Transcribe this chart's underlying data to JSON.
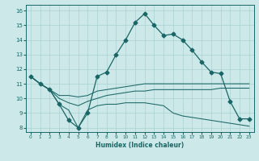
{
  "xlabel": "Humidex (Indice chaleur)",
  "xlim": [
    -0.5,
    23.5
  ],
  "ylim": [
    7.7,
    16.4
  ],
  "xticks": [
    0,
    1,
    2,
    3,
    4,
    5,
    6,
    7,
    8,
    9,
    10,
    11,
    12,
    13,
    14,
    15,
    16,
    17,
    18,
    19,
    20,
    21,
    22,
    23
  ],
  "yticks": [
    8,
    9,
    10,
    11,
    12,
    13,
    14,
    15,
    16
  ],
  "bg_color": "#cce8e8",
  "grid_color": "#aad0d0",
  "line_color": "#1a6666",
  "line1_x": [
    0,
    1,
    2,
    3,
    4,
    5,
    6,
    7,
    8,
    9,
    10,
    11,
    12,
    13,
    14,
    15,
    16,
    17,
    18,
    19,
    20,
    21,
    22,
    23
  ],
  "line1_y": [
    11.5,
    11.0,
    10.6,
    9.6,
    8.5,
    8.0,
    9.0,
    11.5,
    11.8,
    13.0,
    14.0,
    15.2,
    15.8,
    15.0,
    14.3,
    14.4,
    14.0,
    13.3,
    12.5,
    11.8,
    11.7,
    9.8,
    8.6,
    8.6
  ],
  "line2_x": [
    0,
    1,
    2,
    3,
    4,
    5,
    6,
    7,
    8,
    9,
    10,
    11,
    12,
    13,
    14,
    15,
    16,
    17,
    18,
    19,
    20,
    21,
    22,
    23
  ],
  "line2_y": [
    11.5,
    11.0,
    10.6,
    10.2,
    10.2,
    10.1,
    10.2,
    10.5,
    10.6,
    10.7,
    10.8,
    10.9,
    11.0,
    11.0,
    11.0,
    11.0,
    11.0,
    11.0,
    11.0,
    11.0,
    11.0,
    11.0,
    11.0,
    11.0
  ],
  "line3_x": [
    0,
    1,
    2,
    3,
    4,
    5,
    6,
    7,
    8,
    9,
    10,
    11,
    12,
    13,
    14,
    15,
    16,
    17,
    18,
    19,
    20,
    21,
    22,
    23
  ],
  "line3_y": [
    11.5,
    11.0,
    10.6,
    10.0,
    9.7,
    9.5,
    9.8,
    10.0,
    10.2,
    10.3,
    10.4,
    10.5,
    10.5,
    10.6,
    10.6,
    10.6,
    10.6,
    10.6,
    10.6,
    10.6,
    10.7,
    10.7,
    10.7,
    10.7
  ],
  "line4_x": [
    0,
    1,
    2,
    3,
    4,
    5,
    6,
    7,
    8,
    9,
    10,
    11,
    12,
    13,
    14,
    15,
    16,
    17,
    18,
    19,
    20,
    21,
    22,
    23
  ],
  "line4_y": [
    11.5,
    11.0,
    10.6,
    9.6,
    9.2,
    8.0,
    9.2,
    9.5,
    9.6,
    9.6,
    9.7,
    9.7,
    9.7,
    9.6,
    9.5,
    9.0,
    8.8,
    8.7,
    8.6,
    8.5,
    8.4,
    8.3,
    8.2,
    8.1
  ]
}
